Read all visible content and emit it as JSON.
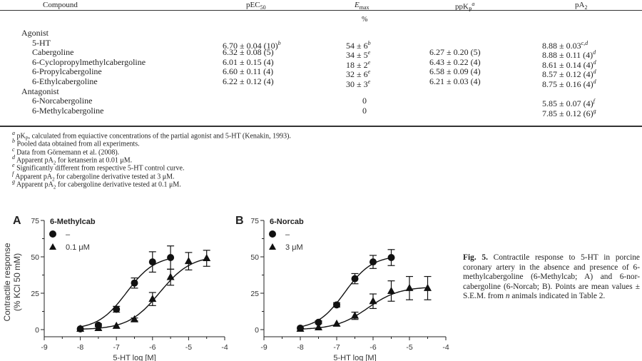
{
  "table": {
    "headers": {
      "compound": "Compound",
      "pec50": "pEC",
      "pec50_sub": "50",
      "emax": "E",
      "emax_sub": "max",
      "emax_unit": "%",
      "pkp": "pK",
      "pkp_sub": "P",
      "pkp_sup": "a",
      "pa2": "pA",
      "pa2_sub": "2"
    },
    "groups": [
      {
        "label": "Agonist",
        "rows": [
          {
            "compound": "5-HT",
            "pec50": "6.70 ± 0.04 (10)",
            "pec50_sup": "b",
            "emax": "54 ± 6",
            "emax_sup": "b",
            "pkp": "",
            "pa2": "8.88 ± 0.03",
            "pa2_sup": "c,d"
          },
          {
            "compound": "Cabergoline",
            "pec50": "6.32 ± 0.08 (5)",
            "pec50_sup": "",
            "emax": "34 ± 5",
            "emax_sup": "e",
            "pkp": "6.27 ± 0.20 (5)",
            "pa2": "8.88 ± 0.11 (4)",
            "pa2_sup": "d"
          },
          {
            "compound": "6-Cyclopropylmethylcabergoline",
            "pec50": "6.01 ± 0.15 (4)",
            "pec50_sup": "",
            "emax": "18 ± 2",
            "emax_sup": "e",
            "pkp": "6.43 ± 0.22 (4)",
            "pa2": "8.61 ± 0.14 (4)",
            "pa2_sup": "d"
          },
          {
            "compound": "6-Propylcabergoline",
            "pec50": "6.60 ± 0.11 (4)",
            "pec50_sup": "",
            "emax": "32 ± 6",
            "emax_sup": "e",
            "pkp": "6.58 ± 0.09 (4)",
            "pa2": "8.57 ± 0.12 (4)",
            "pa2_sup": "d"
          },
          {
            "compound": "6-Ethylcabergoline",
            "pec50": "6.22 ± 0.12 (4)",
            "pec50_sup": "",
            "emax": "30 ± 3",
            "emax_sup": "e",
            "pkp": "6.21 ± 0.03 (4)",
            "pa2": "8.75 ± 0.16 (4)",
            "pa2_sup": "d"
          }
        ]
      },
      {
        "label": "Antagonist",
        "rows": [
          {
            "compound": "6-Norcabergoline",
            "pec50": "",
            "pec50_sup": "",
            "emax": "0",
            "emax_sup": "",
            "pkp": "",
            "pa2": "5.85 ± 0.07 (4)",
            "pa2_sup": "f"
          },
          {
            "compound": "6-Methylcabergoline",
            "pec50": "",
            "pec50_sup": "",
            "emax": "0",
            "emax_sup": "",
            "pkp": "",
            "pa2": "7.85 ± 0.12 (6)",
            "pa2_sup": "g"
          }
        ]
      }
    ],
    "footnotes": [
      {
        "mark": "a",
        "text": "pK",
        "sub": "P",
        "rest": ", calculated from equiactive concentrations of the partial agonist and 5-HT (Kenakin, 1993)."
      },
      {
        "mark": "b",
        "text": "Pooled data obtained from all experiments."
      },
      {
        "mark": "c",
        "text": "Data from Görnemann et al. (2008)."
      },
      {
        "mark": "d",
        "text": "Apparent pA",
        "sub": "2",
        "rest": " for ketanserin at 0.01 μM."
      },
      {
        "mark": "e",
        "text": "Significantly different from respective 5-HT control curve."
      },
      {
        "mark": "f",
        "text": "Apparent pA",
        "sub": "2",
        "rest": " for cabergoline derivative tested at 3 μM."
      },
      {
        "mark": "g",
        "text": "Apparent pA",
        "sub": "2",
        "rest": " for cabergoline derivative tested at 0.1 μM."
      }
    ]
  },
  "caption": {
    "label": "Fig. 5.",
    "text": "Contractile response to 5-HT in porcine coronary artery in the absence and presence of 6-methylcabergoline (6-Methylcab; A) and 6-nor-cabergoline (6-Norcab; B). Points are mean values ± S.E.M. from ",
    "italic": "n",
    "text_end": " animals indicated in Table 2."
  },
  "chart_data": [
    {
      "type": "line",
      "panel": "A",
      "title": "6-Methylcab",
      "xlabel": "5-HT log [M]",
      "ylabel": "Contractile response (% KCl 50 mM)",
      "xlim": [
        -9,
        -4
      ],
      "ylim": [
        0,
        75
      ],
      "xticks": [
        "-9",
        "-8",
        "-7",
        "-6",
        "-5",
        "-4"
      ],
      "yticks": [
        "0",
        "25",
        "50",
        "75"
      ],
      "legend_position": "top-left",
      "series": [
        {
          "name": "–",
          "marker": "circle",
          "x": [
            -8,
            -7.5,
            -7,
            -6.5,
            -6,
            -5.5
          ],
          "y": [
            0.5,
            3,
            14,
            32,
            46.5,
            49.5
          ],
          "err": [
            0,
            1,
            2,
            3.5,
            7,
            8
          ],
          "fit": {
            "bottom": 0,
            "top": 51,
            "logec50": -6.72,
            "hill": 1.1
          }
        },
        {
          "name": "0.1 μM",
          "marker": "triangle",
          "x": [
            -8,
            -7.5,
            -7,
            -6.5,
            -6,
            -5.5,
            -5,
            -4.5
          ],
          "y": [
            0.5,
            1,
            2.5,
            7,
            21,
            36,
            47,
            49
          ],
          "err": [
            0,
            0,
            0,
            1,
            4.5,
            5.5,
            6,
            5.5
          ],
          "fit": {
            "bottom": 0,
            "top": 51,
            "logec50": -5.8,
            "hill": 1.0
          }
        }
      ]
    },
    {
      "type": "line",
      "panel": "B",
      "title": "6-Norcab",
      "xlabel": "5-HT log [M]",
      "ylabel": "",
      "xlim": [
        -9,
        -4
      ],
      "ylim": [
        0,
        75
      ],
      "xticks": [
        "-9",
        "-8",
        "-7",
        "-6",
        "-5",
        "-4"
      ],
      "yticks": [
        "0",
        "25",
        "50",
        "75"
      ],
      "legend_position": "top-left",
      "series": [
        {
          "name": "–",
          "marker": "circle",
          "x": [
            -8,
            -7.5,
            -7,
            -6.5,
            -6,
            -5.5
          ],
          "y": [
            1,
            5,
            17,
            35,
            46.5,
            49.5
          ],
          "err": [
            0,
            1,
            1.5,
            3.5,
            4.5,
            5.5
          ],
          "fit": {
            "bottom": 0,
            "top": 51,
            "logec50": -6.78,
            "hill": 1.15
          }
        },
        {
          "name": "3 μM",
          "marker": "triangle",
          "x": [
            -8,
            -7.5,
            -7,
            -6.5,
            -6,
            -5.5,
            -5,
            -4.5
          ],
          "y": [
            0.5,
            1.5,
            4,
            9.5,
            19.5,
            26.5,
            28.5,
            28.5
          ],
          "err": [
            0,
            0,
            0,
            2.5,
            5,
            7,
            8,
            8
          ],
          "fit": {
            "bottom": 0,
            "top": 29.5,
            "logec50": -6.15,
            "hill": 1.0
          }
        }
      ]
    }
  ]
}
